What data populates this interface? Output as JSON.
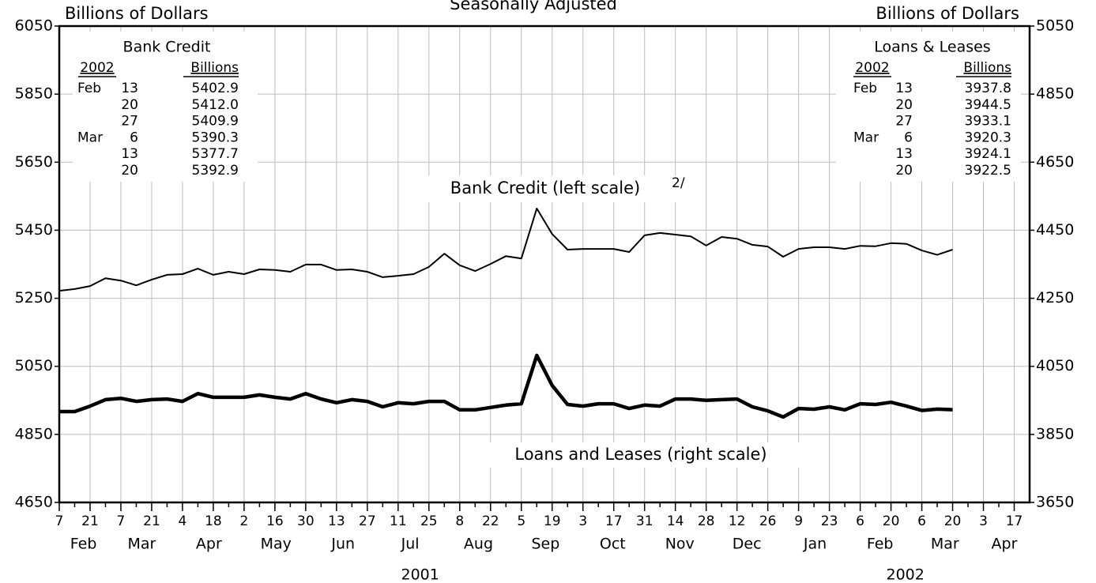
{
  "chart_data": {
    "type": "line",
    "subtitle": "Seasonally Adjusted",
    "y_label": "Billions of Dollars",
    "y2_label": "Billions of Dollars",
    "x": [
      "2001-02-07",
      "2001-02-14",
      "2001-02-21",
      "2001-02-28",
      "2001-03-07",
      "2001-03-14",
      "2001-03-21",
      "2001-03-28",
      "2001-04-04",
      "2001-04-11",
      "2001-04-18",
      "2001-04-25",
      "2001-05-02",
      "2001-05-09",
      "2001-05-16",
      "2001-05-23",
      "2001-05-30",
      "2001-06-06",
      "2001-06-13",
      "2001-06-20",
      "2001-06-27",
      "2001-07-04",
      "2001-07-11",
      "2001-07-18",
      "2001-07-25",
      "2001-08-01",
      "2001-08-08",
      "2001-08-15",
      "2001-08-22",
      "2001-08-29",
      "2001-09-05",
      "2001-09-12",
      "2001-09-19",
      "2001-09-26",
      "2001-10-03",
      "2001-10-10",
      "2001-10-17",
      "2001-10-24",
      "2001-10-31",
      "2001-11-07",
      "2001-11-14",
      "2001-11-21",
      "2001-11-28",
      "2001-12-05",
      "2001-12-12",
      "2001-12-19",
      "2001-12-26",
      "2002-01-02",
      "2002-01-09",
      "2002-01-16",
      "2002-01-23",
      "2002-01-30",
      "2002-02-06",
      "2002-02-13",
      "2002-02-20",
      "2002-02-27",
      "2002-03-06",
      "2002-03-13",
      "2002-03-20",
      "2002-03-27",
      "2002-04-03",
      "2002-04-10",
      "2002-04-17"
    ],
    "xlim": [
      "2001-02-07",
      "2002-04-24"
    ],
    "xticks": [
      {
        "value": "2001-02-07",
        "label": "7"
      },
      {
        "value": "2001-02-21",
        "label": "21"
      },
      {
        "value": "2001-03-07",
        "label": "7"
      },
      {
        "value": "2001-03-21",
        "label": "21"
      },
      {
        "value": "2001-04-04",
        "label": "4"
      },
      {
        "value": "2001-04-18",
        "label": "18"
      },
      {
        "value": "2001-05-02",
        "label": "2"
      },
      {
        "value": "2001-05-16",
        "label": "16"
      },
      {
        "value": "2001-05-30",
        "label": "30"
      },
      {
        "value": "2001-06-13",
        "label": "13"
      },
      {
        "value": "2001-06-27",
        "label": "27"
      },
      {
        "value": "2001-07-11",
        "label": "11"
      },
      {
        "value": "2001-07-25",
        "label": "25"
      },
      {
        "value": "2001-08-08",
        "label": "8"
      },
      {
        "value": "2001-08-22",
        "label": "22"
      },
      {
        "value": "2001-09-05",
        "label": "5"
      },
      {
        "value": "2001-09-19",
        "label": "19"
      },
      {
        "value": "2001-10-03",
        "label": "3"
      },
      {
        "value": "2001-10-17",
        "label": "17"
      },
      {
        "value": "2001-10-31",
        "label": "31"
      },
      {
        "value": "2001-11-14",
        "label": "14"
      },
      {
        "value": "2001-11-28",
        "label": "28"
      },
      {
        "value": "2001-12-12",
        "label": "12"
      },
      {
        "value": "2001-12-26",
        "label": "26"
      },
      {
        "value": "2002-01-09",
        "label": "9"
      },
      {
        "value": "2002-01-23",
        "label": "23"
      },
      {
        "value": "2002-02-06",
        "label": "6"
      },
      {
        "value": "2002-02-20",
        "label": "20"
      },
      {
        "value": "2002-03-06",
        "label": "6"
      },
      {
        "value": "2002-03-20",
        "label": "20"
      },
      {
        "value": "2002-04-03",
        "label": "3"
      },
      {
        "value": "2002-04-17",
        "label": "17"
      }
    ],
    "x_months": [
      {
        "value": "2001-02",
        "label": "Feb"
      },
      {
        "value": "2001-03",
        "label": "Mar"
      },
      {
        "value": "2001-04",
        "label": "Apr"
      },
      {
        "value": "2001-05",
        "label": "May"
      },
      {
        "value": "2001-06",
        "label": "Jun"
      },
      {
        "value": "2001-07",
        "label": "Jul"
      },
      {
        "value": "2001-08",
        "label": "Aug"
      },
      {
        "value": "2001-09",
        "label": "Sep"
      },
      {
        "value": "2001-10",
        "label": "Oct"
      },
      {
        "value": "2001-11",
        "label": "Nov"
      },
      {
        "value": "2001-12",
        "label": "Dec"
      },
      {
        "value": "2002-01",
        "label": "Jan"
      },
      {
        "value": "2002-02",
        "label": "Feb"
      },
      {
        "value": "2002-03",
        "label": "Mar"
      },
      {
        "value": "2002-04",
        "label": "Apr"
      }
    ],
    "x_years": [
      "2001",
      "2002"
    ],
    "ylim": [
      4650,
      6050
    ],
    "yticks": [
      4650,
      4850,
      5050,
      5250,
      5450,
      5650,
      5850,
      6050
    ],
    "y2lim": [
      3650,
      5050
    ],
    "y2ticks": [
      3650,
      3850,
      4050,
      4250,
      4450,
      4650,
      4850,
      5050
    ],
    "grid": true,
    "series": [
      {
        "name": "Bank Credit (left scale)",
        "footnote": "2/",
        "color": "#000000",
        "values": [
          5272,
          5277,
          5286,
          5309,
          5302,
          5288,
          5305,
          5319,
          5321,
          5337,
          5319,
          5328,
          5321,
          5335,
          5333,
          5328,
          5349,
          5349,
          5333,
          5335,
          5328,
          5312,
          5316,
          5321,
          5342,
          5381,
          5347,
          5330,
          5351,
          5374,
          5367,
          5514,
          5439,
          5393,
          5395,
          5395,
          5395,
          5386,
          5435,
          5442,
          5437,
          5432,
          5405,
          5430,
          5425,
          5407,
          5402,
          5372,
          5395,
          5400,
          5400,
          5395,
          5404,
          5402.9,
          5412.0,
          5409.9,
          5390.3,
          5377.7,
          5392.9,
          null,
          null,
          null,
          null
        ]
      },
      {
        "name": "Loans and Leases (right scale)",
        "axis": "y2",
        "color": "#000000",
        "values": [
          3917,
          3917,
          3933,
          3952,
          3956,
          3947,
          3952,
          3954,
          3947,
          3970,
          3959,
          3959,
          3959,
          3966,
          3959,
          3954,
          3970,
          3954,
          3943,
          3952,
          3947,
          3931,
          3943,
          3940,
          3947,
          3947,
          3922,
          3922,
          3929,
          3936,
          3940,
          4082,
          3994,
          3938,
          3933,
          3940,
          3940,
          3926,
          3936,
          3933,
          3954,
          3954,
          3950,
          3952,
          3954,
          3931,
          3919,
          3901,
          3926,
          3924,
          3931,
          3922,
          3940,
          3937.8,
          3944.5,
          3933.1,
          3920.3,
          3924.1,
          3922.5,
          null,
          null,
          null,
          null
        ]
      }
    ],
    "tables": [
      {
        "title": "Bank Credit",
        "year_header": "2002",
        "value_header": "Billions",
        "rows": [
          [
            "Feb",
            "13",
            "5402.9"
          ],
          [
            null,
            "20",
            "5412.0"
          ],
          [
            null,
            "27",
            "5409.9"
          ],
          [
            "Mar",
            "6",
            "5390.3"
          ],
          [
            null,
            "13",
            "5377.7"
          ],
          [
            null,
            "20",
            "5392.9"
          ]
        ]
      },
      {
        "title": "Loans & Leases",
        "year_header": "2002",
        "value_header": "Billions",
        "rows": [
          [
            "Feb",
            "13",
            "3937.8"
          ],
          [
            null,
            "20",
            "3944.5"
          ],
          [
            null,
            "27",
            "3933.1"
          ],
          [
            "Mar",
            "6",
            "3920.3"
          ],
          [
            null,
            "13",
            "3924.1"
          ],
          [
            null,
            "20",
            "3922.5"
          ]
        ]
      }
    ]
  }
}
